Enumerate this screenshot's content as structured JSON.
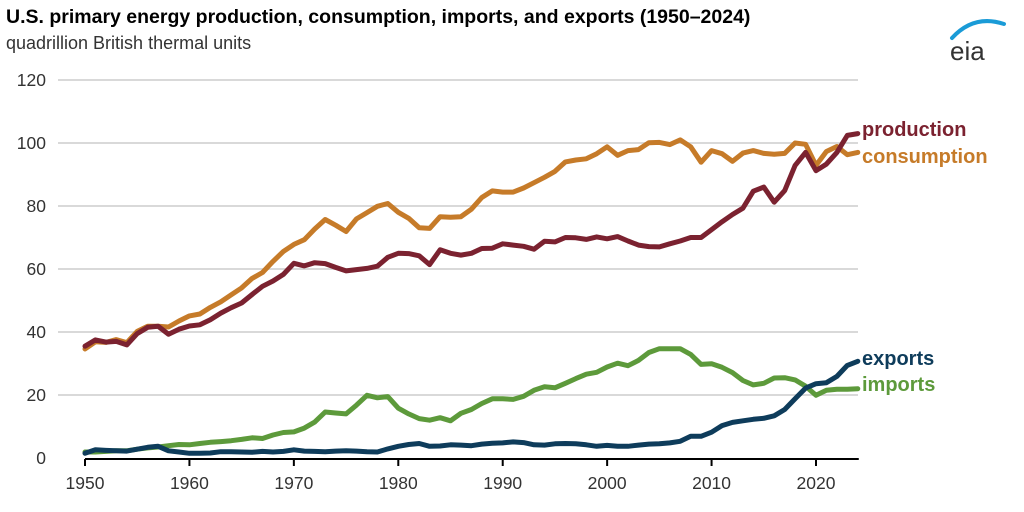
{
  "header": {
    "title": "U.S. primary energy production, consumption, imports, and exports (1950–2024)",
    "subtitle": "quadrillion British thermal units",
    "logo_text": "eia",
    "logo_color": "#1a9bd7"
  },
  "chart_data": {
    "type": "line",
    "title": "U.S. primary energy production, consumption, imports, and exports (1950–2024)",
    "subtitle": "quadrillion British thermal units",
    "xlabel": "",
    "ylabel": "quadrillion British thermal units",
    "xlim": [
      1950,
      2024
    ],
    "ylim": [
      0,
      120
    ],
    "x_ticks": [
      1950,
      1960,
      1970,
      1980,
      1990,
      2000,
      2010,
      2020
    ],
    "x_tick_labels": [
      "1950",
      "1960",
      "1970",
      "1980",
      "1990",
      "2000",
      "2010",
      "2020"
    ],
    "y_ticks": [
      0,
      20,
      40,
      60,
      80,
      100,
      120
    ],
    "y_tick_labels": [
      "0",
      "20",
      "40",
      "60",
      "80",
      "100",
      "120"
    ],
    "grid": "horizontal",
    "legend": "direct labels at right end of lines",
    "x": [
      1950,
      1951,
      1952,
      1953,
      1954,
      1955,
      1956,
      1957,
      1958,
      1959,
      1960,
      1961,
      1962,
      1963,
      1964,
      1965,
      1966,
      1967,
      1968,
      1969,
      1970,
      1971,
      1972,
      1973,
      1974,
      1975,
      1976,
      1977,
      1978,
      1979,
      1980,
      1981,
      1982,
      1983,
      1984,
      1985,
      1986,
      1987,
      1988,
      1989,
      1990,
      1991,
      1992,
      1993,
      1994,
      1995,
      1996,
      1997,
      1998,
      1999,
      2000,
      2001,
      2002,
      2003,
      2004,
      2005,
      2006,
      2007,
      2008,
      2009,
      2010,
      2011,
      2012,
      2013,
      2014,
      2015,
      2016,
      2017,
      2018,
      2019,
      2020,
      2021,
      2022,
      2023,
      2024
    ],
    "series": [
      {
        "name": "production",
        "color": "#7b2230",
        "values": [
          35.5,
          37.5,
          36.8,
          37.0,
          35.9,
          39.5,
          41.5,
          41.8,
          39.3,
          40.9,
          41.9,
          42.3,
          43.9,
          46.0,
          47.7,
          49.2,
          51.9,
          54.5,
          56.2,
          58.3,
          61.8,
          61.0,
          62.0,
          61.7,
          60.5,
          59.4,
          59.8,
          60.2,
          60.9,
          63.7,
          65.0,
          64.9,
          64.2,
          61.4,
          66.1,
          65.0,
          64.4,
          65.0,
          66.5,
          66.6,
          68.0,
          67.6,
          67.2,
          66.3,
          68.8,
          68.6,
          70.0,
          69.9,
          69.4,
          70.2,
          69.6,
          70.3,
          68.9,
          67.6,
          67.1,
          67.0,
          68.0,
          68.9,
          70.0,
          70.0,
          72.5,
          75.0,
          77.3,
          79.3,
          84.7,
          86.0,
          81.2,
          84.9,
          92.9,
          97.0,
          91.2,
          93.3,
          97.0,
          102.4,
          103.0
        ]
      },
      {
        "name": "consumption",
        "color": "#c67b29",
        "values": [
          34.6,
          36.9,
          36.7,
          37.6,
          36.6,
          40.2,
          41.8,
          41.8,
          41.6,
          43.5,
          45.1,
          45.7,
          47.8,
          49.6,
          51.8,
          54.0,
          57.0,
          58.9,
          62.4,
          65.6,
          67.8,
          69.3,
          72.7,
          75.7,
          73.9,
          71.9,
          75.9,
          77.9,
          79.9,
          80.8,
          78.0,
          76.1,
          73.1,
          72.9,
          76.6,
          76.4,
          76.6,
          79.0,
          82.7,
          84.8,
          84.4,
          84.4,
          85.7,
          87.4,
          89.1,
          91.0,
          94.0,
          94.6,
          95.0,
          96.6,
          98.8,
          96.1,
          97.6,
          97.9,
          100.1,
          100.2,
          99.5,
          101.0,
          98.8,
          93.9,
          97.6,
          96.6,
          94.2,
          96.8,
          97.6,
          96.7,
          96.4,
          96.7,
          100.0,
          99.6,
          92.9,
          97.3,
          98.9,
          96.3,
          97.0
        ]
      },
      {
        "name": "exports",
        "color": "#0e3c5b",
        "values": [
          1.5,
          2.6,
          2.4,
          2.3,
          2.2,
          2.8,
          3.4,
          3.7,
          2.3,
          1.9,
          1.5,
          1.5,
          1.6,
          2.0,
          2.0,
          1.9,
          1.8,
          2.1,
          1.9,
          2.1,
          2.6,
          2.2,
          2.1,
          2.0,
          2.2,
          2.3,
          2.2,
          2.0,
          1.9,
          2.9,
          3.7,
          4.3,
          4.6,
          3.7,
          3.8,
          4.2,
          4.1,
          3.9,
          4.4,
          4.7,
          4.8,
          5.1,
          4.9,
          4.2,
          4.1,
          4.5,
          4.6,
          4.5,
          4.2,
          3.7,
          4.0,
          3.7,
          3.7,
          4.1,
          4.4,
          4.5,
          4.8,
          5.3,
          6.9,
          6.9,
          8.2,
          10.3,
          11.3,
          11.8,
          12.3,
          12.6,
          13.4,
          15.4,
          18.8,
          22.2,
          23.6,
          23.9,
          25.9,
          29.4,
          30.7
        ]
      },
      {
        "name": "imports",
        "color": "#5d9a3b",
        "values": [
          1.9,
          1.9,
          2.1,
          2.3,
          2.3,
          2.8,
          3.2,
          3.5,
          3.9,
          4.3,
          4.2,
          4.6,
          5.0,
          5.2,
          5.5,
          5.9,
          6.4,
          6.2,
          7.3,
          8.1,
          8.3,
          9.5,
          11.4,
          14.6,
          14.3,
          14.0,
          16.8,
          19.9,
          19.1,
          19.5,
          15.8,
          14.0,
          12.5,
          12.0,
          12.8,
          11.8,
          14.2,
          15.4,
          17.3,
          18.8,
          18.8,
          18.6,
          19.6,
          21.5,
          22.6,
          22.3,
          23.7,
          25.2,
          26.6,
          27.2,
          28.9,
          30.1,
          29.3,
          31.0,
          33.5,
          34.7,
          34.7,
          34.7,
          32.9,
          29.7,
          29.9,
          28.8,
          27.1,
          24.6,
          23.2,
          23.7,
          25.4,
          25.5,
          24.8,
          22.8,
          19.9,
          21.5,
          21.8,
          21.8,
          22.0
        ]
      }
    ]
  },
  "labels": {
    "production": "production",
    "consumption": "consumption",
    "exports": "exports",
    "imports": "imports"
  }
}
